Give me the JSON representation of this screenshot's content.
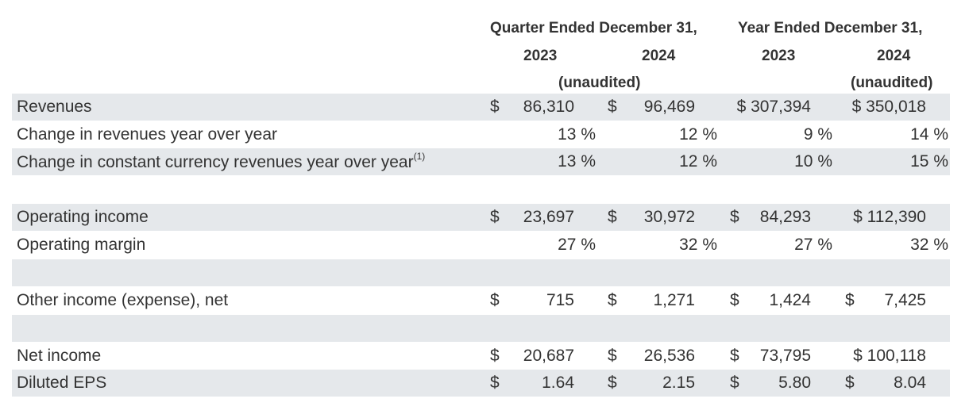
{
  "header": {
    "quarter_title": "Quarter Ended December 31,",
    "year_title": "Year Ended December 31,",
    "q_2023": "2023",
    "q_2024": "2024",
    "y_2023": "2023",
    "y_2024": "2024",
    "q_unaudited": "(unaudited)",
    "y_unaudited": "(unaudited)"
  },
  "rows": [
    {
      "label": "Revenues",
      "sup": "",
      "type": "money",
      "shaded": true,
      "values": [
        {
          "cur": "$",
          "num": "86,310"
        },
        {
          "cur": "$",
          "num": "96,469"
        },
        {
          "cur": "",
          "num": "$ 307,394"
        },
        {
          "cur": "",
          "num": "$ 350,018"
        }
      ]
    },
    {
      "label": "Change in revenues year over year",
      "sup": "",
      "type": "pct",
      "shaded": false,
      "values": [
        "13 %",
        "12 %",
        "9 %",
        "14 %"
      ]
    },
    {
      "label": "Change in constant currency revenues year over year",
      "sup": "(1)",
      "type": "pct",
      "shaded": true,
      "values": [
        "13 %",
        "12 %",
        "10 %",
        "15 %"
      ]
    },
    {
      "label": "",
      "sup": "",
      "type": "blank",
      "shaded": false,
      "values": []
    },
    {
      "label": "Operating income",
      "sup": "",
      "type": "money",
      "shaded": true,
      "values": [
        {
          "cur": "$",
          "num": "23,697"
        },
        {
          "cur": "$",
          "num": "30,972"
        },
        {
          "cur": "$",
          "num": "84,293"
        },
        {
          "cur": "",
          "num": "$ 112,390"
        }
      ]
    },
    {
      "label": "Operating margin",
      "sup": "",
      "type": "pct",
      "shaded": false,
      "values": [
        "27 %",
        "32 %",
        "27 %",
        "32 %"
      ]
    },
    {
      "label": "",
      "sup": "",
      "type": "blank",
      "shaded": true,
      "values": []
    },
    {
      "label": "Other income (expense), net",
      "sup": "",
      "type": "money",
      "shaded": false,
      "values": [
        {
          "cur": "$",
          "num": "715"
        },
        {
          "cur": "$",
          "num": "1,271"
        },
        {
          "cur": "$",
          "num": "1,424"
        },
        {
          "cur": "$",
          "num": "7,425"
        }
      ]
    },
    {
      "label": "",
      "sup": "",
      "type": "blank",
      "shaded": true,
      "values": []
    },
    {
      "label": "Net income",
      "sup": "",
      "type": "money",
      "shaded": false,
      "values": [
        {
          "cur": "$",
          "num": "20,687"
        },
        {
          "cur": "$",
          "num": "26,536"
        },
        {
          "cur": "$",
          "num": "73,795"
        },
        {
          "cur": "",
          "num": "$ 100,118"
        }
      ]
    },
    {
      "label": "Diluted EPS",
      "sup": "",
      "type": "money",
      "shaded": true,
      "values": [
        {
          "cur": "$",
          "num": "1.64"
        },
        {
          "cur": "$",
          "num": "2.15"
        },
        {
          "cur": "$",
          "num": "5.80"
        },
        {
          "cur": "$",
          "num": "8.04"
        }
      ]
    }
  ]
}
